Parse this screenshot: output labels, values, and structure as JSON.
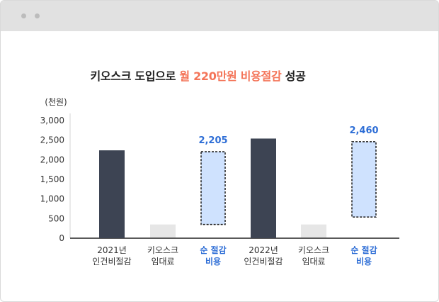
{
  "window": {
    "controls": [
      "window-dot",
      "window-dot"
    ]
  },
  "title_parts": {
    "before": "키오스크 도입으로 ",
    "highlight": "월 220만원 비용절감",
    "after": " 성공"
  },
  "colors": {
    "actual_bar": "#3d4453",
    "rental_bar": "#e6e6e6",
    "savings_fill": "#cfe2fe",
    "savings_text": "#2e6ed6",
    "highlight": "#f47458",
    "axis": "#222222"
  },
  "chart_data": {
    "type": "bar",
    "title": "키오스크 도입으로 월 220만원 비용절감 성공",
    "ylabel": "(천원)",
    "ylim": [
      0,
      3000
    ],
    "yticks": [
      "0",
      "500",
      "1,000",
      "1,500",
      "2,000",
      "2,500",
      "3,000"
    ],
    "categories": [
      {
        "lines": [
          "2021년",
          "인건비절감"
        ],
        "highlight": false
      },
      {
        "lines": [
          "키오스크",
          "임대료"
        ],
        "highlight": false
      },
      {
        "lines": [
          "순 절감",
          "비용"
        ],
        "highlight": true
      },
      {
        "lines": [
          "2022년",
          "인건비절감"
        ],
        "highlight": false
      },
      {
        "lines": [
          "키오스크",
          "임대료"
        ],
        "highlight": false
      },
      {
        "lines": [
          "순 절감",
          "비용"
        ],
        "highlight": true
      }
    ],
    "bars": [
      {
        "kind": "actual",
        "base": 0,
        "value": 2240
      },
      {
        "kind": "rental",
        "base": 0,
        "value": 350
      },
      {
        "kind": "savings",
        "base": 350,
        "value": 2205,
        "label": "2,205"
      },
      {
        "kind": "actual",
        "base": 0,
        "value": 2540
      },
      {
        "kind": "rental",
        "base": 0,
        "value": 350
      },
      {
        "kind": "savings",
        "base": 540,
        "value": 2460,
        "label": "2,460"
      }
    ]
  }
}
